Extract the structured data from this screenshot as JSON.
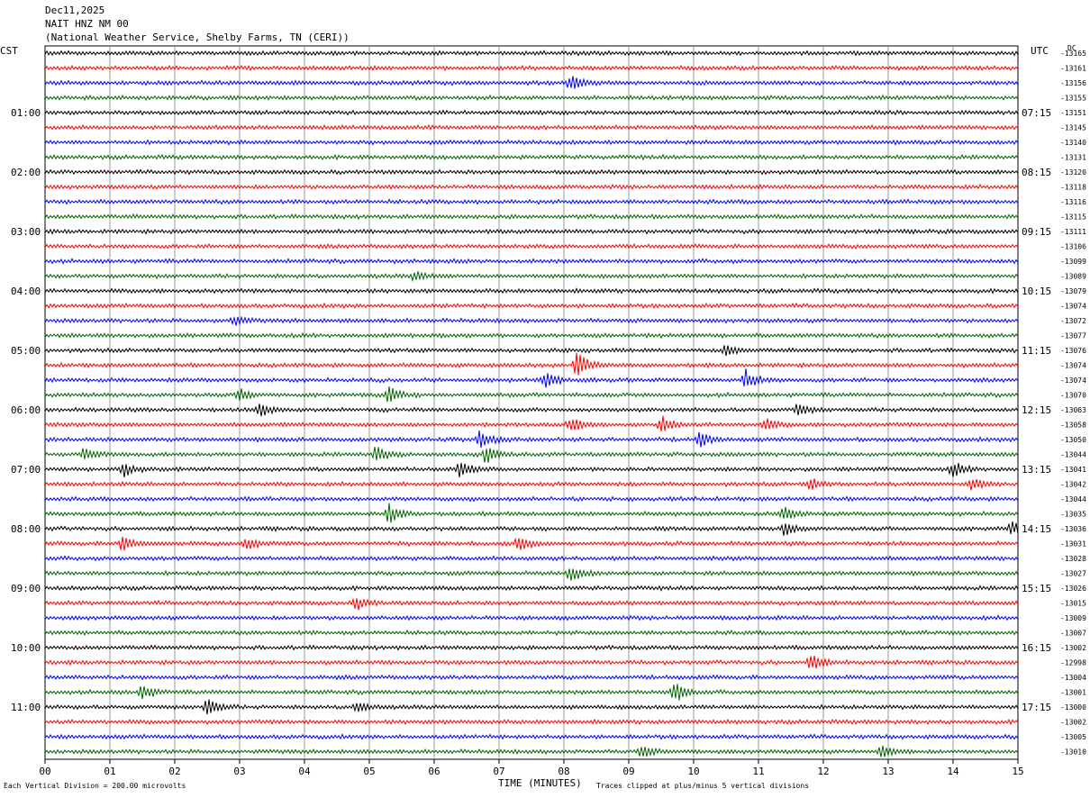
{
  "header": {
    "date": "Dec11,2025",
    "station": "NAIT HNZ NM 00",
    "location": "(National Weather Service, Shelby Farms, TN (CERI))"
  },
  "left_label": "CST",
  "right_label": "UTC",
  "dc_label": "DC",
  "footer": {
    "scale_note": "Each Vertical Division =  200.00 microvolts",
    "xlabel": "TIME (MINUTES)",
    "clip_note": "Traces clipped at plus/minus 5 vertical divisions"
  },
  "chart_data": {
    "type": "line",
    "title": "NAIT HNZ NM 00",
    "xlabel": "TIME (MINUTES)",
    "xlim": [
      0,
      15
    ],
    "x_ticks": [
      "00",
      "01",
      "02",
      "03",
      "04",
      "05",
      "06",
      "07",
      "08",
      "09",
      "10",
      "11",
      "12",
      "13",
      "14",
      "15"
    ],
    "grid": true,
    "trace_colors": [
      "#000000",
      "#ff0000",
      "#0000ff",
      "#006400"
    ],
    "cst_labels": [
      {
        "row": 4,
        "text": "01:00"
      },
      {
        "row": 8,
        "text": "02:00"
      },
      {
        "row": 12,
        "text": "03:00"
      },
      {
        "row": 16,
        "text": "04:00"
      },
      {
        "row": 20,
        "text": "05:00"
      },
      {
        "row": 24,
        "text": "06:00"
      },
      {
        "row": 28,
        "text": "07:00"
      },
      {
        "row": 32,
        "text": "08:00"
      },
      {
        "row": 36,
        "text": "09:00"
      },
      {
        "row": 40,
        "text": "10:00"
      },
      {
        "row": 44,
        "text": "11:00"
      }
    ],
    "utc_labels": [
      {
        "row": 4,
        "text": "07:15"
      },
      {
        "row": 8,
        "text": "08:15"
      },
      {
        "row": 12,
        "text": "09:15"
      },
      {
        "row": 16,
        "text": "10:15"
      },
      {
        "row": 20,
        "text": "11:15"
      },
      {
        "row": 24,
        "text": "12:15"
      },
      {
        "row": 28,
        "text": "13:15"
      },
      {
        "row": 32,
        "text": "14:15"
      },
      {
        "row": 36,
        "text": "15:15"
      },
      {
        "row": 40,
        "text": "16:15"
      },
      {
        "row": 44,
        "text": "17:15"
      }
    ],
    "dc_offsets": [
      "-13165",
      "-13161",
      "-13156",
      "-13155",
      "-13151",
      "-13145",
      "-13140",
      "-13131",
      "-13120",
      "-13118",
      "-13116",
      "-13115",
      "-13111",
      "-13106",
      "-13099",
      "-13089",
      "-13079",
      "-13074",
      "-13072",
      "-13077",
      "-13076",
      "-13074",
      "-13074",
      "-13070",
      "-13063",
      "-13058",
      "-13050",
      "-13044",
      "-13041",
      "-13042",
      "-13044",
      "-13035",
      "-13036",
      "-13031",
      "-13028",
      "-13027",
      "-13026",
      "-13015",
      "-13009",
      "-13007",
      "-13002",
      "-12998",
      "-13004",
      "-13001",
      "-13000",
      "-13002",
      "-13005",
      "-13010"
    ],
    "noise_amplitude": 2.2,
    "events": [
      {
        "row": 2,
        "minute": 8.1,
        "amp": 8
      },
      {
        "row": 15,
        "minute": 5.7,
        "amp": 5
      },
      {
        "row": 18,
        "minute": 2.9,
        "amp": 5
      },
      {
        "row": 20,
        "minute": 10.5,
        "amp": 6
      },
      {
        "row": 21,
        "minute": 8.2,
        "amp": 16
      },
      {
        "row": 22,
        "minute": 7.7,
        "amp": 9
      },
      {
        "row": 22,
        "minute": 10.8,
        "amp": 12
      },
      {
        "row": 23,
        "minute": 3.0,
        "amp": 7
      },
      {
        "row": 23,
        "minute": 5.3,
        "amp": 9
      },
      {
        "row": 24,
        "minute": 3.3,
        "amp": 8
      },
      {
        "row": 24,
        "minute": 11.6,
        "amp": 6
      },
      {
        "row": 25,
        "minute": 8.1,
        "amp": 8
      },
      {
        "row": 25,
        "minute": 9.5,
        "amp": 10
      },
      {
        "row": 25,
        "minute": 11.1,
        "amp": 6
      },
      {
        "row": 26,
        "minute": 6.7,
        "amp": 10
      },
      {
        "row": 26,
        "minute": 10.1,
        "amp": 8
      },
      {
        "row": 27,
        "minute": 0.6,
        "amp": 7
      },
      {
        "row": 27,
        "minute": 5.1,
        "amp": 9
      },
      {
        "row": 27,
        "minute": 6.8,
        "amp": 9
      },
      {
        "row": 28,
        "minute": 1.2,
        "amp": 8
      },
      {
        "row": 28,
        "minute": 6.4,
        "amp": 9
      },
      {
        "row": 28,
        "minute": 14.0,
        "amp": 8
      },
      {
        "row": 29,
        "minute": 11.8,
        "amp": 6
      },
      {
        "row": 29,
        "minute": 14.3,
        "amp": 7
      },
      {
        "row": 31,
        "minute": 5.3,
        "amp": 10
      },
      {
        "row": 31,
        "minute": 11.4,
        "amp": 8
      },
      {
        "row": 32,
        "minute": 11.4,
        "amp": 8
      },
      {
        "row": 32,
        "minute": 14.9,
        "amp": 8
      },
      {
        "row": 33,
        "minute": 1.2,
        "amp": 9
      },
      {
        "row": 33,
        "minute": 3.1,
        "amp": 7
      },
      {
        "row": 33,
        "minute": 7.3,
        "amp": 8
      },
      {
        "row": 35,
        "minute": 8.1,
        "amp": 9
      },
      {
        "row": 37,
        "minute": 4.8,
        "amp": 7
      },
      {
        "row": 41,
        "minute": 11.8,
        "amp": 9
      },
      {
        "row": 43,
        "minute": 1.5,
        "amp": 8
      },
      {
        "row": 43,
        "minute": 9.7,
        "amp": 12
      },
      {
        "row": 44,
        "minute": 2.5,
        "amp": 9
      },
      {
        "row": 44,
        "minute": 4.8,
        "amp": 6
      },
      {
        "row": 47,
        "minute": 9.2,
        "amp": 6
      },
      {
        "row": 47,
        "minute": 12.9,
        "amp": 7
      }
    ]
  }
}
